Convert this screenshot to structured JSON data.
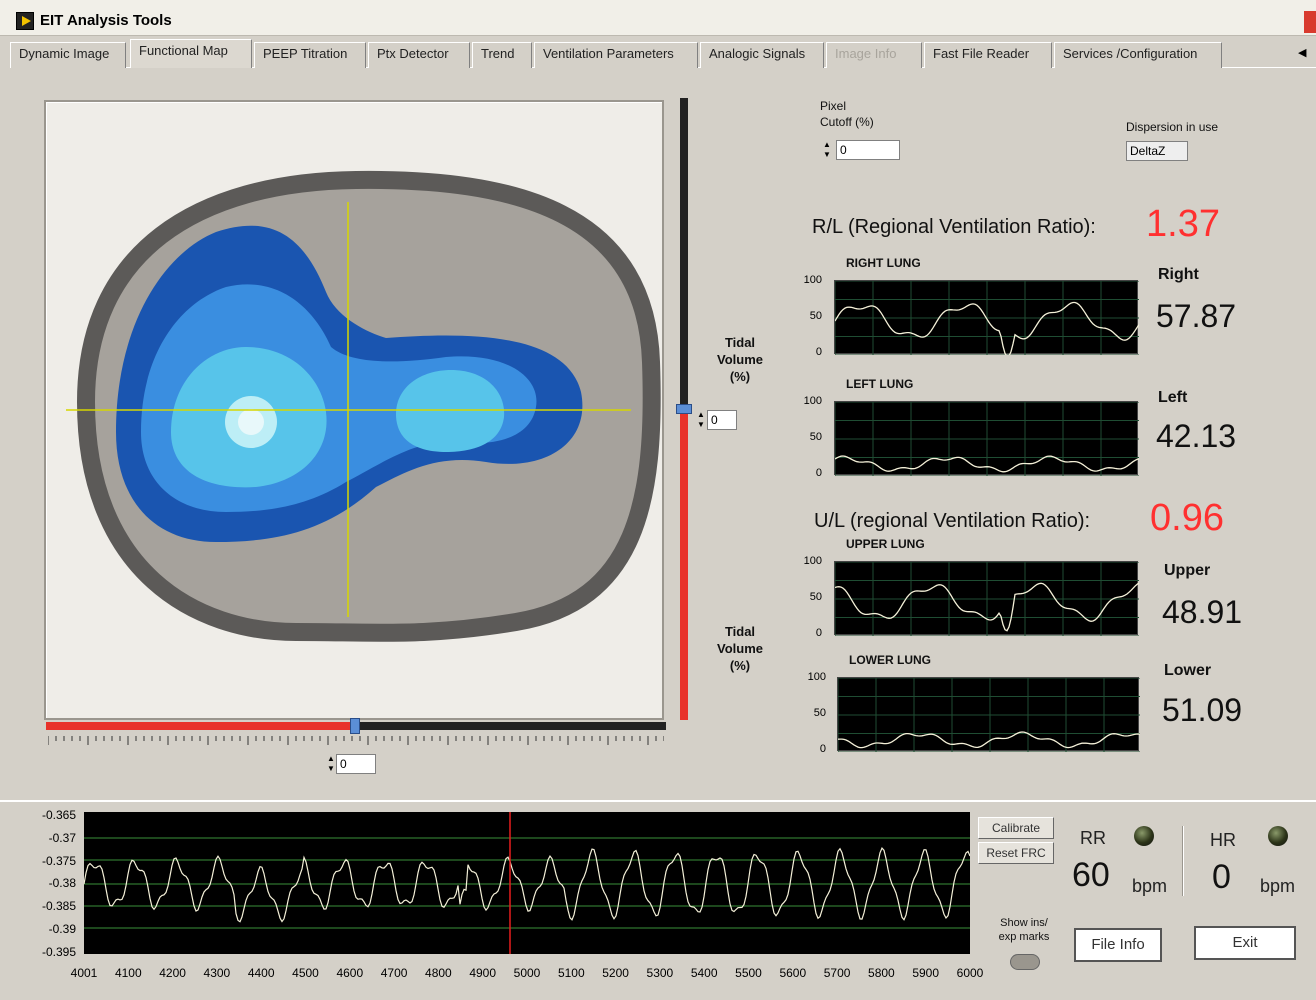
{
  "window": {
    "title": "EIT Analysis Tools"
  },
  "tabs": [
    {
      "label": "Dynamic Image",
      "state": "normal"
    },
    {
      "label": "Functional Map",
      "state": "active"
    },
    {
      "label": "PEEP Titration",
      "state": "normal"
    },
    {
      "label": "Ptx Detector",
      "state": "normal"
    },
    {
      "label": "Trend",
      "state": "normal"
    },
    {
      "label": "Ventilation Parameters",
      "state": "normal"
    },
    {
      "label": "Analogic Signals",
      "state": "normal"
    },
    {
      "label": "Image Info",
      "state": "disabled"
    },
    {
      "label": "Fast File Reader",
      "state": "normal"
    },
    {
      "label": "Services /Configuration",
      "state": "normal"
    }
  ],
  "controls": {
    "pixel_cutoff_label_1": "Pixel",
    "pixel_cutoff_label_2": "Cutoff (%)",
    "pixel_cutoff_value": "0",
    "dispersion_label": "Dispersion in use",
    "dispersion_value": "DeltaZ",
    "vertical_slider_value": "0",
    "horizontal_slider_value": "0",
    "tidal_volume_1_line1": "Tidal",
    "tidal_volume_1_line2": "Volume",
    "tidal_volume_1_line3": "(%)",
    "tidal_volume_2_line1": "Tidal",
    "tidal_volume_2_line2": "Volume",
    "tidal_volume_2_line3": "(%)"
  },
  "ratios": {
    "rl_label": "R/L (Regional Ventilation Ratio):",
    "rl_value": "1.37",
    "ul_label": "U/L (regional Ventilation Ratio):",
    "ul_value": "0.96"
  },
  "lungs": [
    {
      "title": "RIGHT LUNG",
      "side_label": "Right",
      "value": "57.87"
    },
    {
      "title": "LEFT LUNG",
      "side_label": "Left",
      "value": "42.13"
    },
    {
      "title": "UPPER LUNG",
      "side_label": "Upper",
      "value": "48.91"
    },
    {
      "title": "LOWER LUNG",
      "side_label": "Lower",
      "value": "51.09"
    }
  ],
  "mini_axis": {
    "t100": "100",
    "t50": "50",
    "t0": "0"
  },
  "waveform": {
    "y_ticks": [
      "-0.365",
      "-0.37",
      "-0.375",
      "-0.38",
      "-0.385",
      "-0.39",
      "-0.395"
    ],
    "x_ticks": [
      "4001",
      "4100",
      "4200",
      "4300",
      "4400",
      "4500",
      "4600",
      "4700",
      "4800",
      "4900",
      "5000",
      "5100",
      "5200",
      "5300",
      "5400",
      "5500",
      "5600",
      "5700",
      "5800",
      "5900",
      "6000"
    ]
  },
  "buttons": {
    "calibrate": "Calibrate",
    "reset_frc": "Reset FRC",
    "show_marks_line1": "Show ins/",
    "show_marks_line2": "exp marks",
    "file_info": "File Info",
    "exit": "Exit"
  },
  "vitals": {
    "rr_label": "RR",
    "rr_value": "60",
    "rr_unit": "bpm",
    "hr_label": "HR",
    "hr_value": "0",
    "hr_unit": "bpm"
  },
  "colors": {
    "ratio_value": "#ff3030",
    "slider_active": "#e8322a",
    "chart_bg": "#000000",
    "trace": "#f4f0d8",
    "lung_dark": "#1a55b0",
    "lung_mid": "#3a8ee0",
    "lung_light": "#57c4ea",
    "lung_core": "#e8f8fa",
    "crosshair": "#d6d600"
  }
}
